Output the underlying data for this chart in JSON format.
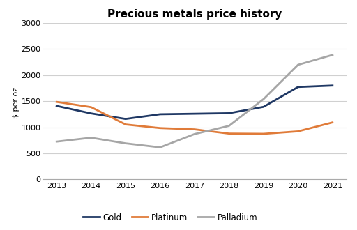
{
  "title": "Precious metals price history",
  "ylabel": "$ per oz.",
  "years": [
    2013,
    2014,
    2015,
    2016,
    2017,
    2018,
    2019,
    2020,
    2021
  ],
  "gold": [
    1410,
    1266,
    1160,
    1250,
    1260,
    1270,
    1392,
    1773,
    1800
  ],
  "platinum": [
    1487,
    1386,
    1054,
    985,
    960,
    879,
    875,
    922,
    1093
  ],
  "palladium": [
    725,
    800,
    692,
    615,
    870,
    1028,
    1540,
    2198,
    2388
  ],
  "gold_color": "#1f3864",
  "platinum_color": "#e07b39",
  "palladium_color": "#a6a6a6",
  "line_width": 2.0,
  "ylim": [
    0,
    3000
  ],
  "yticks": [
    0,
    500,
    1000,
    1500,
    2000,
    2500,
    3000
  ],
  "background_color": "#ffffff",
  "grid_color": "#d0d0d0",
  "title_fontsize": 11,
  "label_fontsize": 8,
  "tick_fontsize": 8,
  "legend_fontsize": 8.5
}
